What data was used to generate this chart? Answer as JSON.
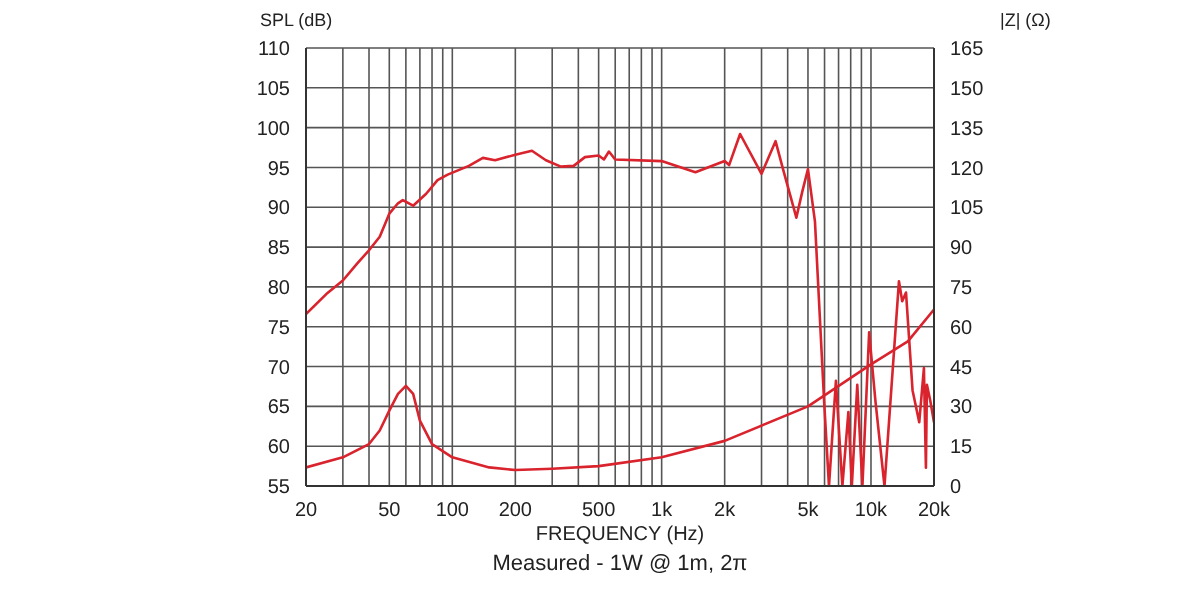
{
  "chart_data": {
    "type": "line",
    "xlabel": "FREQUENCY (Hz)",
    "ylabel": "SPL (dB)",
    "y2label": "|Z| (Ω)",
    "annotations": [
      "Measured - 1W @ 1m, 2π"
    ],
    "log": "x",
    "grid": true,
    "marker": "none",
    "line_style": "solid",
    "xlim": [
      20,
      20000
    ],
    "ylim": [
      55,
      110
    ],
    "y2lim": [
      0,
      165
    ],
    "xticks": [
      20,
      {
        "value": 30,
        "label": null
      },
      {
        "value": 40,
        "label": null
      },
      50,
      {
        "value": 60,
        "label": null
      },
      {
        "value": 70,
        "label": null
      },
      {
        "value": 80,
        "label": null
      },
      {
        "value": 90,
        "label": null
      },
      100,
      200,
      {
        "value": 300,
        "label": null
      },
      {
        "value": 400,
        "label": null
      },
      500,
      {
        "value": 600,
        "label": null
      },
      {
        "value": 700,
        "label": null
      },
      {
        "value": 800,
        "label": null
      },
      {
        "value": 900,
        "label": null
      },
      {
        "value": 1000,
        "label": "1k"
      },
      {
        "value": 2000,
        "label": "2k"
      },
      {
        "value": 3000,
        "label": null
      },
      {
        "value": 4000,
        "label": null
      },
      {
        "value": 5000,
        "label": "5k"
      },
      {
        "value": 6000,
        "label": null
      },
      {
        "value": 7000,
        "label": null
      },
      {
        "value": 8000,
        "label": null
      },
      {
        "value": 9000,
        "label": null
      },
      {
        "value": 10000,
        "label": "10k"
      },
      {
        "value": 20000,
        "label": "20k"
      }
    ],
    "yticks": [
      55,
      60,
      65,
      70,
      75,
      80,
      85,
      90,
      95,
      100,
      105,
      110
    ],
    "y2ticks": [
      0,
      15,
      30,
      45,
      60,
      75,
      90,
      105,
      120,
      135,
      150,
      165
    ],
    "series": [
      {
        "color": "#d9232d",
        "x": [
          20,
          25,
          30,
          35,
          40,
          45,
          50,
          55,
          58,
          65,
          75,
          85,
          95,
          120,
          140,
          160,
          200,
          240,
          280,
          330,
          380,
          430,
          500,
          530,
          560,
          600,
          1000,
          1450,
          2000,
          2100,
          2370,
          3000,
          3500,
          3800,
          4400,
          4700,
          5000,
          5400,
          5970,
          6300,
          6800,
          7300,
          7800,
          8100,
          8600,
          9100,
          9800,
          10500,
          11600,
          13600,
          14100,
          14700,
          15800,
          17000,
          17900,
          18300,
          18500,
          19200,
          20000
        ],
        "values": [
          76.6,
          79.1,
          80.8,
          82.9,
          84.6,
          86.3,
          89.2,
          90.5,
          90.9,
          90.2,
          91.7,
          93.4,
          94.1,
          95.2,
          96.2,
          95.9,
          96.6,
          97.1,
          95.9,
          95.1,
          95.2,
          96.3,
          96.5,
          96,
          97,
          96,
          95.8,
          94.4,
          95.8,
          95.3,
          99.2,
          94.2,
          98.3,
          94.8,
          88.7,
          92,
          94.8,
          88.2,
          65.7,
          55,
          68.2,
          55,
          64.3,
          55,
          67.7,
          55,
          74.3,
          65.7,
          55,
          80.7,
          78.2,
          79.3,
          67,
          63,
          69.8,
          57.3,
          67.7,
          65.7,
          63
        ]
      },
      {
        "color": "#d9232d",
        "axis": "y2",
        "x": [
          20,
          30,
          40,
          45,
          50,
          55,
          60,
          65,
          70,
          80,
          100,
          150,
          200,
          300,
          500,
          1000,
          2000,
          5000,
          10000,
          15000,
          20000
        ],
        "values": [
          7,
          10.8,
          15.8,
          20.9,
          28.4,
          34.7,
          37.7,
          34.7,
          24.6,
          15.8,
          10.8,
          7,
          6,
          6.5,
          7.5,
          10.8,
          17,
          30,
          45.8,
          54.5,
          66.5
        ]
      }
    ]
  }
}
